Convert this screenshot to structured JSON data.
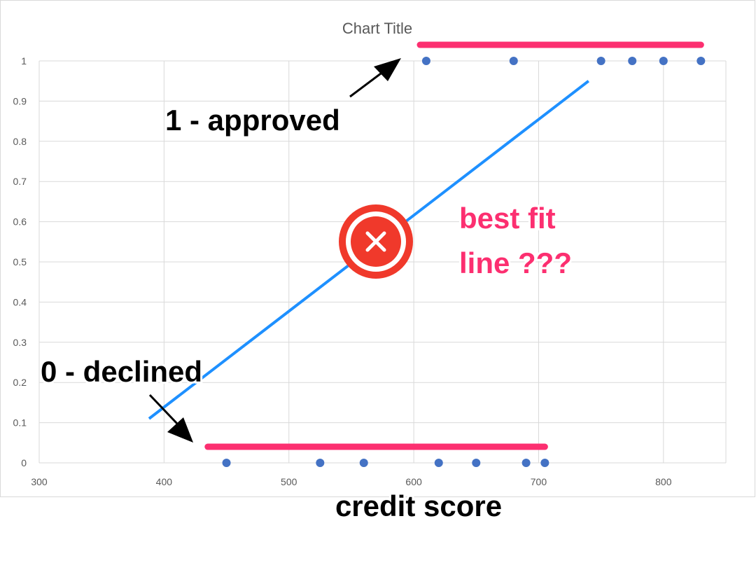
{
  "chart_data": {
    "type": "scatter",
    "title": "Chart Title",
    "xlabel": "credit score",
    "ylabel": "",
    "xlim": [
      300,
      850
    ],
    "ylim": [
      0,
      1
    ],
    "xticks": [
      "300",
      "400",
      "500",
      "600",
      "700",
      "800"
    ],
    "yticks": [
      "0",
      "0.1",
      "0.2",
      "0.3",
      "0.4",
      "0.5",
      "0.6",
      "0.7",
      "0.8",
      "0.9",
      "1"
    ],
    "grid": true,
    "series": [
      {
        "points": [
          {
            "x": 450,
            "y": 0
          },
          {
            "x": 525,
            "y": 0
          },
          {
            "x": 560,
            "y": 0
          },
          {
            "x": 620,
            "y": 0
          },
          {
            "x": 650,
            "y": 0
          },
          {
            "x": 690,
            "y": 0
          },
          {
            "x": 705,
            "y": 0
          },
          {
            "x": 610,
            "y": 1
          },
          {
            "x": 680,
            "y": 1
          },
          {
            "x": 750,
            "y": 1
          },
          {
            "x": 775,
            "y": 1
          },
          {
            "x": 800,
            "y": 1
          },
          {
            "x": 830,
            "y": 1
          }
        ]
      }
    ],
    "fit_line": {
      "x": [
        388,
        740
      ],
      "y": [
        0.11,
        0.95
      ]
    },
    "group_bars": [
      {
        "x": [
          435,
          705
        ],
        "y": 0.04
      },
      {
        "x": [
          605,
          830
        ],
        "y": 1.04
      }
    ],
    "annotations": {
      "approved": "1 - approved",
      "declined": "0 - declined",
      "best_fit_line1": "best fit",
      "best_fit_line2": "line ???"
    },
    "colors": {
      "points": "#4472c4",
      "fit_line": "#1e90ff",
      "group_bar": "#fc2f70",
      "note": "#fc2f70",
      "reject_icon": "#f0392b",
      "grid": "#d9d9d9"
    },
    "icons": {
      "reject": "x-circle-icon"
    }
  }
}
